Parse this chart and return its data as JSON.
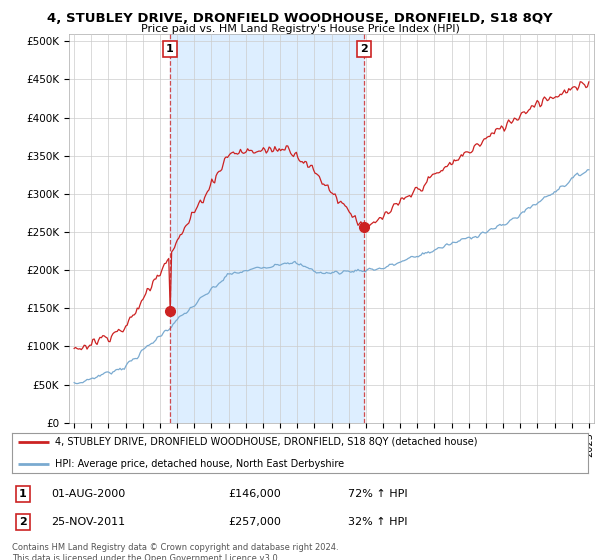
{
  "title": "4, STUBLEY DRIVE, DRONFIELD WOODHOUSE, DRONFIELD, S18 8QY",
  "subtitle": "Price paid vs. HM Land Registry's House Price Index (HPI)",
  "ylabel_ticks": [
    "£0",
    "£50K",
    "£100K",
    "£150K",
    "£200K",
    "£250K",
    "£300K",
    "£350K",
    "£400K",
    "£450K",
    "£500K"
  ],
  "ytick_values": [
    0,
    50000,
    100000,
    150000,
    200000,
    250000,
    300000,
    350000,
    400000,
    450000,
    500000
  ],
  "xlim_start": 1994.7,
  "xlim_end": 2025.3,
  "ylim": [
    0,
    510000
  ],
  "hpi_color": "#7aaad0",
  "price_color": "#cc2222",
  "shade_color": "#ddeeff",
  "marker1_date": 2000.58,
  "marker1_price": 146000,
  "marker2_date": 2011.9,
  "marker2_price": 257000,
  "vline1_x": 2000.58,
  "vline2_x": 2011.9,
  "legend_line1": "4, STUBLEY DRIVE, DRONFIELD WOODHOUSE, DRONFIELD, S18 8QY (detached house)",
  "legend_line2": "HPI: Average price, detached house, North East Derbyshire",
  "table_row1": [
    "1",
    "01-AUG-2000",
    "£146,000",
    "72% ↑ HPI"
  ],
  "table_row2": [
    "2",
    "25-NOV-2011",
    "£257,000",
    "32% ↑ HPI"
  ],
  "footer": "Contains HM Land Registry data © Crown copyright and database right 2024.\nThis data is licensed under the Open Government Licence v3.0.",
  "background_color": "#ffffff",
  "grid_color": "#cccccc"
}
